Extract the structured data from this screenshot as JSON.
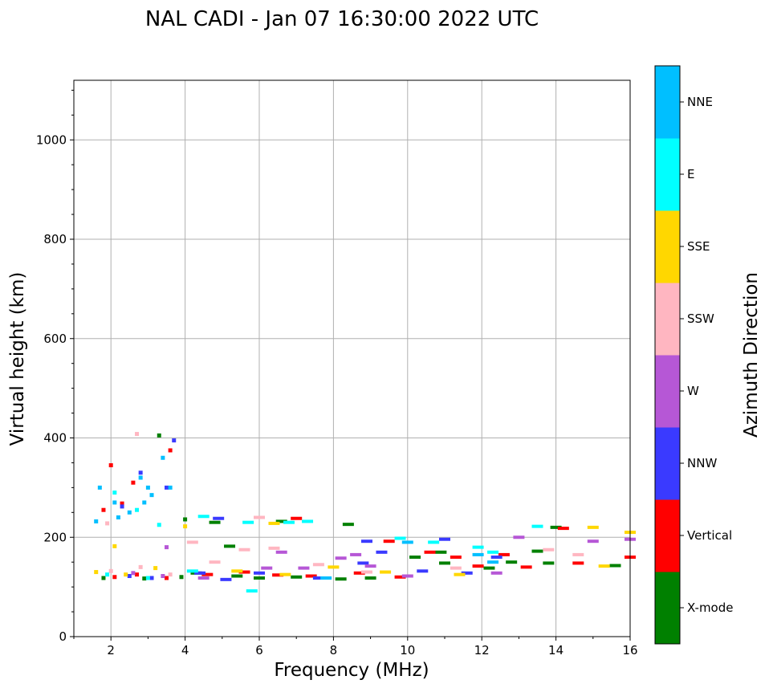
{
  "chart_data": {
    "type": "scatter",
    "title": "NAL CADI - Jan 07 16:30:00 2022 UTC",
    "xlabel": "Frequency (MHz)",
    "ylabel": "Virtual height (km)",
    "xlim": [
      1,
      16
    ],
    "ylim": [
      0,
      1120
    ],
    "xticks": [
      2,
      4,
      6,
      8,
      10,
      12,
      14,
      16
    ],
    "yticks": [
      0,
      200,
      400,
      600,
      800,
      1000
    ],
    "grid": true,
    "colorbar": {
      "label": "Azimuth Direction",
      "entries": [
        {
          "name": "X-mode",
          "color": "#008000"
        },
        {
          "name": "Vertical",
          "color": "#ff0000"
        },
        {
          "name": "NNW",
          "color": "#3a3aff"
        },
        {
          "name": "W",
          "color": "#b657d6"
        },
        {
          "name": "SSW",
          "color": "#ffb6c1"
        },
        {
          "name": "SSE",
          "color": "#ffd700"
        },
        {
          "name": "E",
          "color": "#00ffff"
        },
        {
          "name": "NNE",
          "color": "#00bfff"
        }
      ]
    },
    "series": [
      {
        "name": "X-mode",
        "points": [
          [
            1.8,
            118
          ],
          [
            2.9,
            117
          ],
          [
            3.9,
            120
          ],
          [
            4.3,
            128
          ],
          [
            4.8,
            230
          ],
          [
            5.4,
            122
          ],
          [
            6.0,
            118
          ],
          [
            7.0,
            120
          ],
          [
            8.2,
            116
          ],
          [
            9.0,
            118
          ],
          [
            10.2,
            160
          ],
          [
            11.0,
            148
          ],
          [
            12.2,
            138
          ],
          [
            12.8,
            150
          ],
          [
            13.5,
            172
          ],
          [
            14.0,
            220
          ],
          [
            15.6,
            143
          ],
          [
            4.0,
            236
          ],
          [
            5.2,
            182
          ],
          [
            3.3,
            405
          ],
          [
            6.6,
            232
          ],
          [
            8.4,
            226
          ],
          [
            10.9,
            170
          ],
          [
            13.8,
            148
          ]
        ]
      },
      {
        "name": "Vertical",
        "points": [
          [
            2.1,
            120
          ],
          [
            2.7,
            125
          ],
          [
            3.5,
            118
          ],
          [
            4.6,
            125
          ],
          [
            5.6,
            130
          ],
          [
            6.5,
            124
          ],
          [
            7.4,
            122
          ],
          [
            8.7,
            128
          ],
          [
            9.5,
            192
          ],
          [
            9.8,
            120
          ],
          [
            10.6,
            170
          ],
          [
            11.3,
            160
          ],
          [
            11.9,
            142
          ],
          [
            12.6,
            165
          ],
          [
            13.2,
            140
          ],
          [
            14.2,
            218
          ],
          [
            14.6,
            148
          ],
          [
            16.0,
            160
          ],
          [
            1.8,
            255
          ],
          [
            2.0,
            345
          ],
          [
            2.3,
            268
          ],
          [
            2.6,
            310
          ],
          [
            3.6,
            375
          ],
          [
            7.0,
            238
          ]
        ]
      },
      {
        "name": "NNW",
        "points": [
          [
            2.5,
            122
          ],
          [
            3.1,
            118
          ],
          [
            4.4,
            128
          ],
          [
            5.1,
            115
          ],
          [
            6.0,
            128
          ],
          [
            7.6,
            118
          ],
          [
            8.8,
            148
          ],
          [
            9.3,
            170
          ],
          [
            10.4,
            132
          ],
          [
            11.6,
            128
          ],
          [
            12.4,
            160
          ],
          [
            2.3,
            262
          ],
          [
            2.8,
            330
          ],
          [
            3.5,
            300
          ],
          [
            3.7,
            395
          ],
          [
            4.9,
            238
          ],
          [
            8.9,
            192
          ],
          [
            11.0,
            196
          ]
        ]
      },
      {
        "name": "W",
        "points": [
          [
            2.6,
            128
          ],
          [
            3.4,
            122
          ],
          [
            4.5,
            118
          ],
          [
            6.2,
            138
          ],
          [
            6.6,
            170
          ],
          [
            7.2,
            138
          ],
          [
            8.2,
            158
          ],
          [
            9.0,
            142
          ],
          [
            10.0,
            122
          ],
          [
            12.4,
            128
          ],
          [
            15.0,
            192
          ],
          [
            16.0,
            196
          ],
          [
            3.5,
            180
          ],
          [
            8.6,
            165
          ],
          [
            13.0,
            200
          ]
        ]
      },
      {
        "name": "SSW",
        "points": [
          [
            2.0,
            132
          ],
          [
            2.8,
            140
          ],
          [
            3.6,
            125
          ],
          [
            4.8,
            150
          ],
          [
            5.6,
            175
          ],
          [
            6.4,
            178
          ],
          [
            7.6,
            145
          ],
          [
            8.9,
            130
          ],
          [
            11.3,
            138
          ],
          [
            13.8,
            175
          ],
          [
            14.6,
            165
          ],
          [
            2.7,
            408
          ],
          [
            1.9,
            228
          ],
          [
            6.0,
            240
          ],
          [
            4.2,
            190
          ]
        ]
      },
      {
        "name": "SSE",
        "points": [
          [
            1.6,
            130
          ],
          [
            2.4,
            125
          ],
          [
            3.2,
            138
          ],
          [
            4.0,
            222
          ],
          [
            5.4,
            132
          ],
          [
            6.7,
            125
          ],
          [
            8.0,
            140
          ],
          [
            9.4,
            130
          ],
          [
            11.4,
            125
          ],
          [
            15.0,
            220
          ],
          [
            16.0,
            210
          ],
          [
            2.1,
            182
          ],
          [
            6.4,
            228
          ],
          [
            15.3,
            142
          ]
        ]
      },
      {
        "name": "E",
        "points": [
          [
            1.9,
            125
          ],
          [
            3.0,
            118
          ],
          [
            4.2,
            132
          ],
          [
            5.7,
            230
          ],
          [
            6.8,
            230
          ],
          [
            7.3,
            232
          ],
          [
            9.8,
            198
          ],
          [
            10.7,
            190
          ],
          [
            11.9,
            180
          ],
          [
            13.5,
            222
          ],
          [
            12.3,
            170
          ],
          [
            5.8,
            92
          ],
          [
            2.1,
            290
          ],
          [
            2.7,
            255
          ],
          [
            3.3,
            225
          ],
          [
            4.5,
            242
          ]
        ]
      },
      {
        "name": "NNE",
        "points": [
          [
            2.1,
            270
          ],
          [
            2.5,
            250
          ],
          [
            2.8,
            320
          ],
          [
            3.1,
            285
          ],
          [
            3.4,
            360
          ],
          [
            1.7,
            300
          ],
          [
            2.2,
            240
          ],
          [
            3.6,
            300
          ],
          [
            2.9,
            270
          ],
          [
            3.0,
            300
          ],
          [
            1.6,
            232
          ],
          [
            7.8,
            118
          ],
          [
            10.0,
            190
          ],
          [
            11.9,
            165
          ],
          [
            12.3,
            150
          ]
        ]
      }
    ]
  }
}
